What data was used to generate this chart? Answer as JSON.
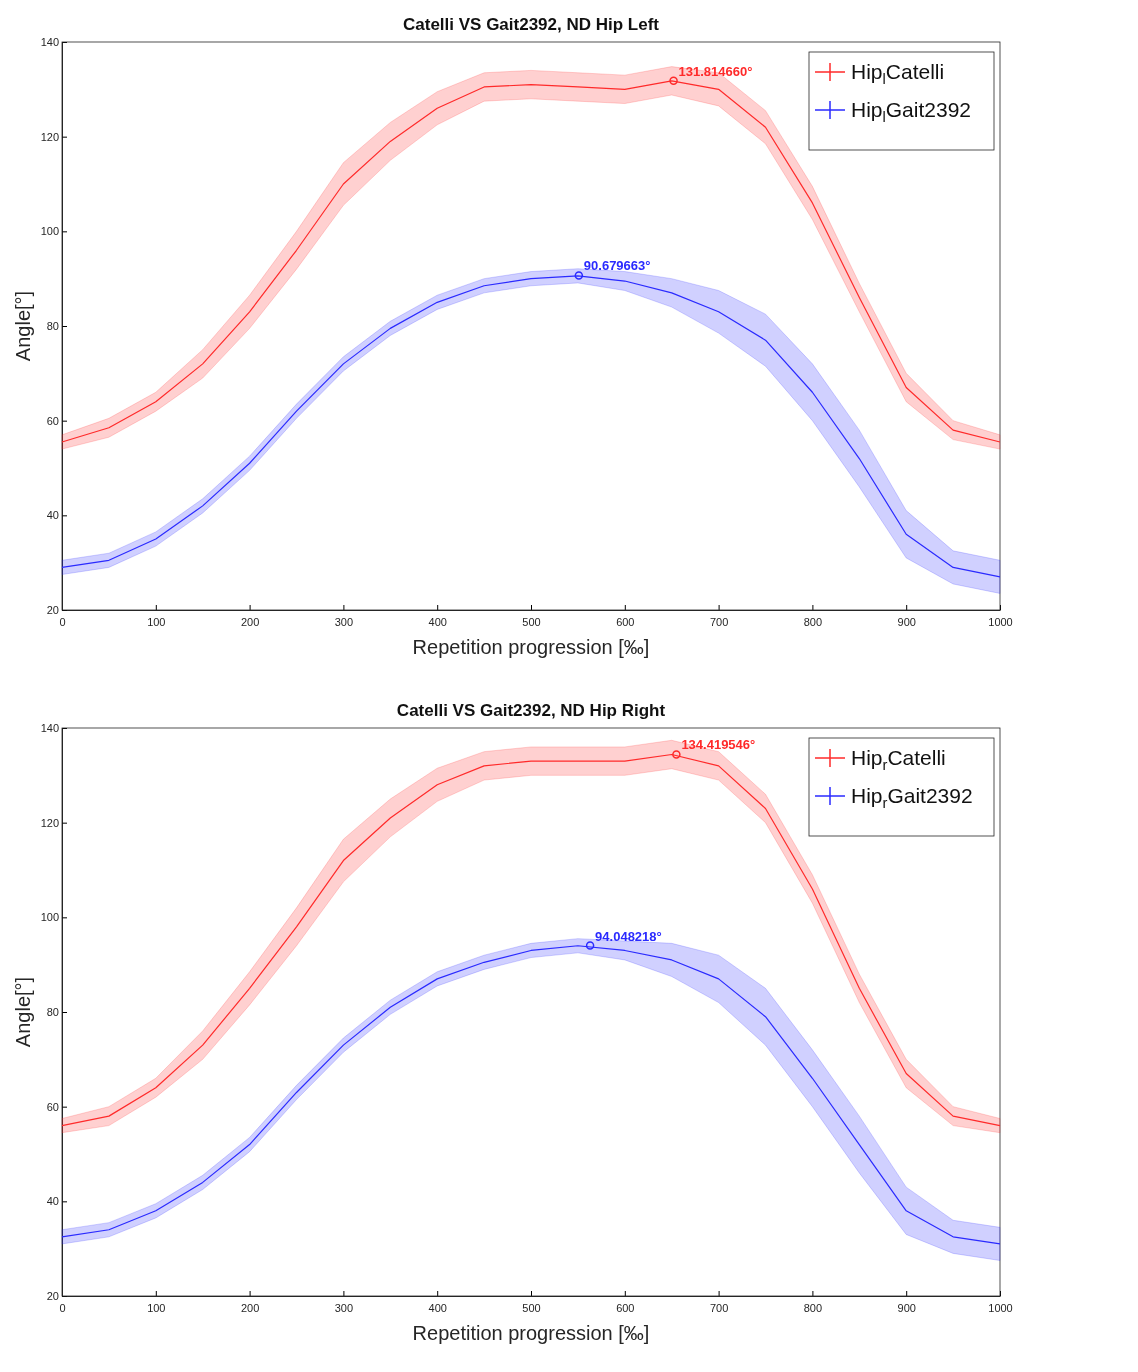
{
  "chart_data": [
    {
      "type": "line",
      "title": "Catelli VS Gait2392, ND Hip Left",
      "xlabel": "Repetition progression [‰]",
      "ylabel": "Angle[°]",
      "x": [
        0,
        50,
        100,
        150,
        200,
        250,
        300,
        350,
        400,
        450,
        500,
        550,
        600,
        650,
        700,
        750,
        800,
        850,
        900,
        950,
        1000
      ],
      "xlim": [
        0,
        1000
      ],
      "xticks": [
        0,
        100,
        200,
        300,
        400,
        500,
        600,
        700,
        800,
        900,
        1000
      ],
      "ylim": [
        20,
        140
      ],
      "yticks": [
        20,
        40,
        60,
        80,
        100,
        120,
        140
      ],
      "grid": false,
      "legend": "top right",
      "marker": "none",
      "line_style": "solid",
      "series": [
        {
          "name": "Hip$_{l}$Catelli",
          "color": "#ff2a2a",
          "values": [
            55.5,
            58.5,
            64,
            72,
            83,
            96,
            110,
            119,
            126,
            130.5,
            131,
            130.5,
            130,
            131.8,
            130,
            122,
            106,
            86,
            67,
            58,
            55.5
          ],
          "lower": [
            54,
            56.5,
            62,
            69,
            79.5,
            92,
            105.5,
            115,
            122.5,
            127.5,
            128,
            127.5,
            127,
            128.8,
            126.5,
            118.5,
            102.5,
            83,
            64,
            56,
            54
          ],
          "upper": [
            57,
            60.5,
            66,
            75,
            86.5,
            100,
            114.5,
            123,
            129.5,
            133.5,
            134,
            133.5,
            133,
            134.8,
            133.5,
            125.5,
            109.5,
            89,
            70,
            60,
            57
          ]
        },
        {
          "name": "Hip$_{l}$Gait2392",
          "color": "#2a2aff",
          "values": [
            29,
            30.5,
            35,
            42,
            51,
            62,
            72,
            79.5,
            85,
            88.5,
            90,
            90.6,
            89.5,
            87,
            83,
            77,
            66,
            52,
            36,
            29,
            27
          ],
          "lower": [
            27.5,
            29,
            33.5,
            40.5,
            49.5,
            60.5,
            70.5,
            78,
            83.5,
            87,
            88.5,
            89.1,
            87.5,
            84,
            78.5,
            71.5,
            60,
            46,
            31,
            25.5,
            23.5
          ],
          "upper": [
            30.5,
            32,
            36.5,
            43.5,
            52.5,
            63.5,
            73.5,
            81,
            86.5,
            90,
            91.5,
            92.1,
            91.5,
            90,
            87.5,
            82.5,
            72,
            58,
            41,
            32.5,
            30.5
          ]
        }
      ],
      "annotations": [
        {
          "text": "131.814660°",
          "x": 652,
          "y": 131.81466
        },
        {
          "text": "90.679663°",
          "x": 551,
          "y": 90.679663
        }
      ]
    },
    {
      "type": "line",
      "title": "Catelli VS Gait2392, ND Hip Right",
      "xlabel": "Repetition progression [‰]",
      "ylabel": "Angle[°]",
      "x": [
        0,
        50,
        100,
        150,
        200,
        250,
        300,
        350,
        400,
        450,
        500,
        550,
        600,
        650,
        700,
        750,
        800,
        850,
        900,
        950,
        1000
      ],
      "xlim": [
        0,
        1000
      ],
      "xticks": [
        0,
        100,
        200,
        300,
        400,
        500,
        600,
        700,
        800,
        900,
        1000
      ],
      "ylim": [
        20,
        140
      ],
      "yticks": [
        20,
        40,
        60,
        80,
        100,
        120,
        140
      ],
      "grid": false,
      "legend": "top right",
      "marker": "none",
      "line_style": "solid",
      "series": [
        {
          "name": "Hip$_{r}$Catelli",
          "color": "#ff2a2a",
          "values": [
            56,
            58,
            64,
            73,
            85,
            98,
            112,
            121,
            128,
            132,
            133,
            133,
            133,
            134.4,
            132,
            123,
            106,
            85,
            67,
            58,
            56
          ],
          "lower": [
            54.5,
            56,
            62,
            70,
            81.5,
            94,
            107.5,
            117,
            124.5,
            129,
            130,
            130,
            130,
            131.4,
            129,
            120,
            103,
            82,
            64,
            56,
            54.5
          ],
          "upper": [
            57.5,
            60,
            66,
            76,
            88.5,
            102,
            116.5,
            125,
            131.5,
            135,
            136,
            136,
            136,
            137.4,
            135,
            126,
            109,
            88,
            70,
            60,
            57.5
          ]
        },
        {
          "name": "Hip$_{r}$Gait2392",
          "color": "#2a2aff",
          "values": [
            32.5,
            34,
            38,
            44,
            52,
            63,
            73,
            81,
            87,
            90.5,
            93,
            94,
            93,
            91,
            87,
            79,
            66,
            52,
            38,
            32.5,
            31
          ],
          "lower": [
            31,
            32.5,
            36.5,
            42.5,
            50.5,
            61.5,
            71.5,
            79.5,
            85.5,
            89,
            91.5,
            92.5,
            91,
            87.5,
            82,
            73,
            60,
            46,
            33,
            29,
            27.5
          ],
          "upper": [
            34,
            35.5,
            39.5,
            45.5,
            53.5,
            64.5,
            74.5,
            82.5,
            88.5,
            92,
            94.5,
            95.5,
            95,
            94.5,
            92,
            85,
            72,
            58,
            43,
            36,
            34.5
          ]
        }
      ],
      "annotations": [
        {
          "text": "134.419546°",
          "x": 655,
          "y": 134.419546
        },
        {
          "text": "94.048218°",
          "x": 563,
          "y": 94.048218
        }
      ]
    }
  ]
}
